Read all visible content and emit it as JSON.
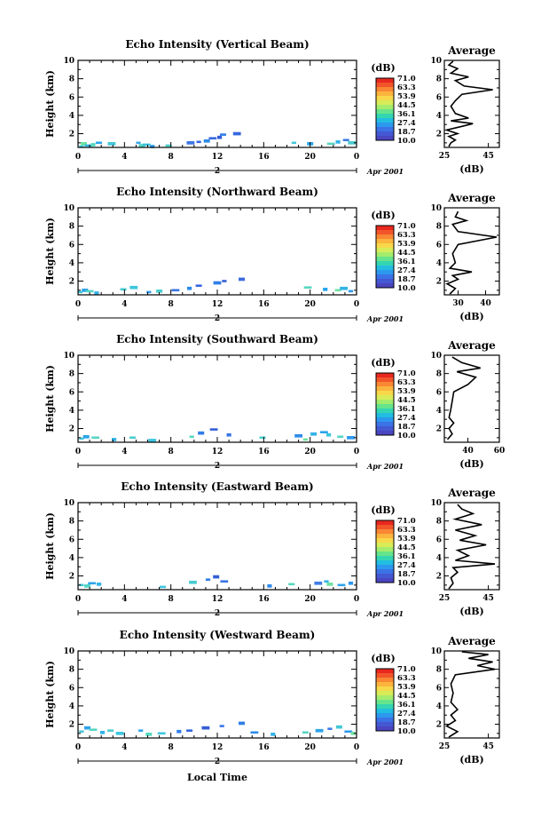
{
  "figure": {
    "time_label": "Local Time",
    "date_label": "Apr 2001",
    "day_label": "2",
    "y_label": "Height (km)",
    "unit_label": "(dB)",
    "avg_title": "Average",
    "avg_xlabel": "(dB)"
  },
  "colorbar": {
    "ticks": [
      "71.0",
      "63.3",
      "53.9",
      "44.5",
      "36.1",
      "27.4",
      "18.7",
      "10.0"
    ],
    "colors": [
      "#e8271f",
      "#f2552a",
      "#f98734",
      "#fbb43e",
      "#f7d84a",
      "#d8ec58",
      "#a5ec6d",
      "#66e48c",
      "#34d6b2",
      "#22bde1",
      "#2c98ee",
      "#3b72e6",
      "#4458d3",
      "#4a45c0"
    ]
  },
  "chart_data": [
    {
      "type": "heatmap",
      "title": "Echo Intensity (Vertical Beam)",
      "xlabel": "",
      "ylabel": "Height (km)",
      "xlim": [
        0,
        24
      ],
      "ylim": [
        0.5,
        10
      ],
      "x_ticks": [
        "0",
        "4",
        "8",
        "12",
        "16",
        "20",
        "0"
      ],
      "y_ticks": [
        "2",
        "4",
        "6",
        "8",
        "10"
      ],
      "cells": [
        [
          0.3,
          0.6,
          "#3ec6e0"
        ],
        [
          0.5,
          0.9,
          "#6ee2a0"
        ],
        [
          0.9,
          0.7,
          "#33b3e8"
        ],
        [
          1.3,
          0.8,
          "#56d8c0"
        ],
        [
          1.8,
          1.0,
          "#2aa6ec"
        ],
        [
          2.9,
          0.9,
          "#44c8d8"
        ],
        [
          5.2,
          1.0,
          "#3ea8ec"
        ],
        [
          5.5,
          0.7,
          "#55d6c2"
        ],
        [
          5.9,
          0.8,
          "#39c0dc"
        ],
        [
          6.4,
          0.6,
          "#2c9ded"
        ],
        [
          7.8,
          0.7,
          "#4ccfcc"
        ],
        [
          9.7,
          1.0,
          "#3a76e4"
        ],
        [
          10.4,
          1.1,
          "#3566e0"
        ],
        [
          11.1,
          1.2,
          "#2d8bea"
        ],
        [
          11.6,
          1.5,
          "#3a6ade"
        ],
        [
          12.2,
          1.6,
          "#345ed6"
        ],
        [
          12.5,
          1.9,
          "#2f7ee8"
        ],
        [
          13.7,
          2.0,
          "#3566e0"
        ],
        [
          18.6,
          1.0,
          "#44c8d8"
        ],
        [
          20.0,
          0.9,
          "#2ca4ea"
        ],
        [
          21.8,
          0.9,
          "#56d6c4"
        ],
        [
          22.4,
          1.1,
          "#33b3e8"
        ],
        [
          23.1,
          1.3,
          "#3f7de6"
        ],
        [
          23.6,
          1.0,
          "#49cbd0"
        ]
      ],
      "avg": {
        "xlim": [
          25,
          50
        ],
        "x_ticks": [
          "25",
          "45"
        ],
        "profile": [
          [
            27,
            0.6
          ],
          [
            28,
            1.0
          ],
          [
            30,
            1.3
          ],
          [
            27,
            1.7
          ],
          [
            31,
            2.0
          ],
          [
            26,
            2.4
          ],
          [
            33,
            2.8
          ],
          [
            38,
            3.1
          ],
          [
            28,
            3.4
          ],
          [
            36,
            3.7
          ],
          [
            30,
            4.2
          ],
          [
            28,
            5.0
          ],
          [
            30,
            5.6
          ],
          [
            33,
            6.3
          ],
          [
            47,
            6.8
          ],
          [
            34,
            7.2
          ],
          [
            30,
            7.8
          ],
          [
            36,
            8.2
          ],
          [
            28,
            8.6
          ],
          [
            31,
            9.1
          ],
          [
            27,
            9.5
          ],
          [
            29,
            9.9
          ]
        ]
      }
    },
    {
      "type": "heatmap",
      "title": "Echo Intensity (Northward Beam)",
      "xlabel": "",
      "ylabel": "Height (km)",
      "xlim": [
        0,
        24
      ],
      "ylim": [
        0.5,
        10
      ],
      "x_ticks": [
        "0",
        "4",
        "8",
        "12",
        "16",
        "20",
        "0"
      ],
      "y_ticks": [
        "2",
        "4",
        "6",
        "8",
        "10"
      ],
      "cells": [
        [
          0.2,
          0.8,
          "#44c8d8"
        ],
        [
          0.6,
          1.0,
          "#2ca4ea"
        ],
        [
          1.0,
          0.9,
          "#56d6c4"
        ],
        [
          1.6,
          0.7,
          "#33b3e8"
        ],
        [
          3.9,
          1.1,
          "#49cbd0"
        ],
        [
          4.8,
          1.3,
          "#3ec6e0"
        ],
        [
          6.1,
          0.8,
          "#2a9dee"
        ],
        [
          7.0,
          0.9,
          "#4ccfcc"
        ],
        [
          8.4,
          1.0,
          "#3a76e4"
        ],
        [
          9.6,
          1.2,
          "#2d8bea"
        ],
        [
          10.4,
          1.5,
          "#3566e0"
        ],
        [
          12.0,
          1.8,
          "#2f7ee8"
        ],
        [
          12.6,
          2.0,
          "#345ed6"
        ],
        [
          14.1,
          2.2,
          "#3a6ade"
        ],
        [
          19.8,
          1.3,
          "#56d8c0"
        ],
        [
          21.3,
          1.1,
          "#2aa6ec"
        ],
        [
          22.4,
          1.0,
          "#6ee2a0"
        ],
        [
          22.9,
          1.2,
          "#33b3e8"
        ],
        [
          23.5,
          0.9,
          "#2c98ee"
        ]
      ],
      "avg": {
        "xlim": [
          25,
          45
        ],
        "x_ticks": [
          "30",
          "40"
        ],
        "profile": [
          [
            27,
            0.6
          ],
          [
            29,
            1.2
          ],
          [
            26,
            1.7
          ],
          [
            30,
            2.2
          ],
          [
            28,
            2.6
          ],
          [
            35,
            3.0
          ],
          [
            27,
            3.4
          ],
          [
            29,
            4.0
          ],
          [
            28,
            5.0
          ],
          [
            30,
            6.0
          ],
          [
            44,
            6.8
          ],
          [
            30,
            7.4
          ],
          [
            28,
            8.2
          ],
          [
            33,
            8.6
          ],
          [
            29,
            9.0
          ],
          [
            30,
            9.6
          ]
        ]
      }
    },
    {
      "type": "heatmap",
      "title": "Echo Intensity (Southward Beam)",
      "xlabel": "",
      "ylabel": "Height (km)",
      "xlim": [
        0,
        24
      ],
      "ylim": [
        0.5,
        10
      ],
      "x_ticks": [
        "0",
        "4",
        "8",
        "12",
        "16",
        "20",
        "0"
      ],
      "y_ticks": [
        "2",
        "4",
        "6",
        "8",
        "10"
      ],
      "cells": [
        [
          0.3,
          0.9,
          "#44c8d8"
        ],
        [
          0.7,
          1.1,
          "#2ca4ea"
        ],
        [
          1.5,
          1.0,
          "#56d6c4"
        ],
        [
          3.1,
          0.8,
          "#33b3e8"
        ],
        [
          4.7,
          1.0,
          "#49cbd0"
        ],
        [
          6.4,
          0.7,
          "#3ec6e0"
        ],
        [
          9.8,
          1.1,
          "#56d8c0"
        ],
        [
          10.6,
          1.5,
          "#2f7ee8"
        ],
        [
          11.7,
          1.9,
          "#345ed6"
        ],
        [
          13.0,
          1.3,
          "#3a76e4"
        ],
        [
          15.9,
          1.0,
          "#4ccfcc"
        ],
        [
          19.0,
          1.2,
          "#2d8bea"
        ],
        [
          19.6,
          0.8,
          "#6ee2a0"
        ],
        [
          20.3,
          1.4,
          "#33b3e8"
        ],
        [
          21.2,
          1.6,
          "#2ca4ea"
        ],
        [
          21.6,
          1.3,
          "#3ec6e0"
        ],
        [
          22.6,
          1.1,
          "#56d6c4"
        ],
        [
          23.5,
          1.0,
          "#2c98ee"
        ]
      ],
      "avg": {
        "xlim": [
          25,
          60
        ],
        "x_ticks": [
          "40",
          "60"
        ],
        "profile": [
          [
            27,
            0.8
          ],
          [
            30,
            1.4
          ],
          [
            28,
            2.0
          ],
          [
            31,
            2.6
          ],
          [
            28,
            3.2
          ],
          [
            29,
            4.0
          ],
          [
            30,
            5.0
          ],
          [
            31,
            6.0
          ],
          [
            40,
            6.8
          ],
          [
            45,
            7.6
          ],
          [
            33,
            8.2
          ],
          [
            48,
            8.6
          ],
          [
            36,
            9.2
          ],
          [
            30,
            9.8
          ]
        ]
      }
    },
    {
      "type": "heatmap",
      "title": "Echo Intensity (Eastward Beam)",
      "xlabel": "",
      "ylabel": "Height (km)",
      "xlim": [
        0,
        24
      ],
      "ylim": [
        0.5,
        10
      ],
      "x_ticks": [
        "0",
        "4",
        "8",
        "12",
        "16",
        "20",
        "0"
      ],
      "y_ticks": [
        "2",
        "4",
        "6",
        "8",
        "10"
      ],
      "cells": [
        [
          0.3,
          1.0,
          "#44c8d8"
        ],
        [
          0.8,
          0.9,
          "#56d6c4"
        ],
        [
          1.2,
          1.2,
          "#2ca4ea"
        ],
        [
          1.8,
          1.1,
          "#33b3e8"
        ],
        [
          7.3,
          0.8,
          "#3ec6e0"
        ],
        [
          9.9,
          1.3,
          "#49cbd0"
        ],
        [
          11.2,
          1.6,
          "#2f7ee8"
        ],
        [
          11.9,
          1.9,
          "#345ed6"
        ],
        [
          12.6,
          1.4,
          "#3a76e4"
        ],
        [
          16.5,
          0.9,
          "#2d8bea"
        ],
        [
          18.4,
          1.1,
          "#56d8c0"
        ],
        [
          20.7,
          1.2,
          "#3f7de6"
        ],
        [
          21.4,
          1.4,
          "#33b3e8"
        ],
        [
          21.7,
          1.1,
          "#6ee2a0"
        ],
        [
          22.7,
          1.0,
          "#2ca4ea"
        ],
        [
          23.5,
          1.2,
          "#2c98ee"
        ]
      ],
      "avg": {
        "xlim": [
          25,
          50
        ],
        "x_ticks": [
          "25",
          "45"
        ],
        "profile": [
          [
            27,
            0.6
          ],
          [
            29,
            1.2
          ],
          [
            28,
            1.8
          ],
          [
            31,
            2.4
          ],
          [
            29,
            2.9
          ],
          [
            48,
            3.3
          ],
          [
            30,
            3.7
          ],
          [
            36,
            4.2
          ],
          [
            31,
            4.8
          ],
          [
            44,
            5.4
          ],
          [
            32,
            5.9
          ],
          [
            39,
            6.4
          ],
          [
            30,
            7.0
          ],
          [
            42,
            7.6
          ],
          [
            30,
            8.2
          ],
          [
            38,
            8.8
          ],
          [
            33,
            9.3
          ],
          [
            31,
            9.8
          ]
        ]
      }
    },
    {
      "type": "heatmap",
      "title": "Echo Intensity (Westward Beam)",
      "xlabel": "Local Time",
      "ylabel": "Height (km)",
      "xlim": [
        0,
        24
      ],
      "ylim": [
        0.5,
        10
      ],
      "x_ticks": [
        "0",
        "4",
        "8",
        "12",
        "16",
        "20",
        "0"
      ],
      "y_ticks": [
        "2",
        "4",
        "6",
        "8",
        "10"
      ],
      "cells": [
        [
          0.3,
          1.2,
          "#44c8d8"
        ],
        [
          0.8,
          1.6,
          "#2ca4ea"
        ],
        [
          1.3,
          1.4,
          "#56d6c4"
        ],
        [
          2.1,
          1.1,
          "#33b3e8"
        ],
        [
          2.8,
          1.3,
          "#49cbd0"
        ],
        [
          3.6,
          1.0,
          "#3ec6e0"
        ],
        [
          5.4,
          1.3,
          "#2ca4ea"
        ],
        [
          6.1,
          0.9,
          "#56d8c0"
        ],
        [
          7.2,
          1.0,
          "#3ec6e0"
        ],
        [
          8.7,
          1.2,
          "#2f7ee8"
        ],
        [
          9.6,
          1.3,
          "#3566e0"
        ],
        [
          11.0,
          1.6,
          "#345ed6"
        ],
        [
          12.4,
          1.8,
          "#3a76e4"
        ],
        [
          14.1,
          2.1,
          "#2f7ee8"
        ],
        [
          15.2,
          1.1,
          "#2d8bea"
        ],
        [
          16.8,
          0.9,
          "#33b3e8"
        ],
        [
          19.6,
          1.1,
          "#56d6c4"
        ],
        [
          20.8,
          1.3,
          "#2ca4ea"
        ],
        [
          21.7,
          1.5,
          "#3f7de6"
        ],
        [
          22.5,
          1.7,
          "#44c8d8"
        ],
        [
          23.3,
          1.2,
          "#2c98ee"
        ],
        [
          23.7,
          1.0,
          "#6ee2a0"
        ]
      ],
      "avg": {
        "xlim": [
          25,
          50
        ],
        "x_ticks": [
          "25",
          "45"
        ],
        "profile": [
          [
            27,
            0.6
          ],
          [
            31,
            1.2
          ],
          [
            26,
            1.8
          ],
          [
            30,
            2.4
          ],
          [
            28,
            3.0
          ],
          [
            31,
            3.6
          ],
          [
            28,
            4.4
          ],
          [
            29,
            5.4
          ],
          [
            28,
            6.4
          ],
          [
            30,
            7.4
          ],
          [
            48,
            8.0
          ],
          [
            40,
            8.4
          ],
          [
            47,
            8.8
          ],
          [
            36,
            9.2
          ],
          [
            45,
            9.6
          ],
          [
            33,
            9.9
          ]
        ]
      }
    }
  ]
}
